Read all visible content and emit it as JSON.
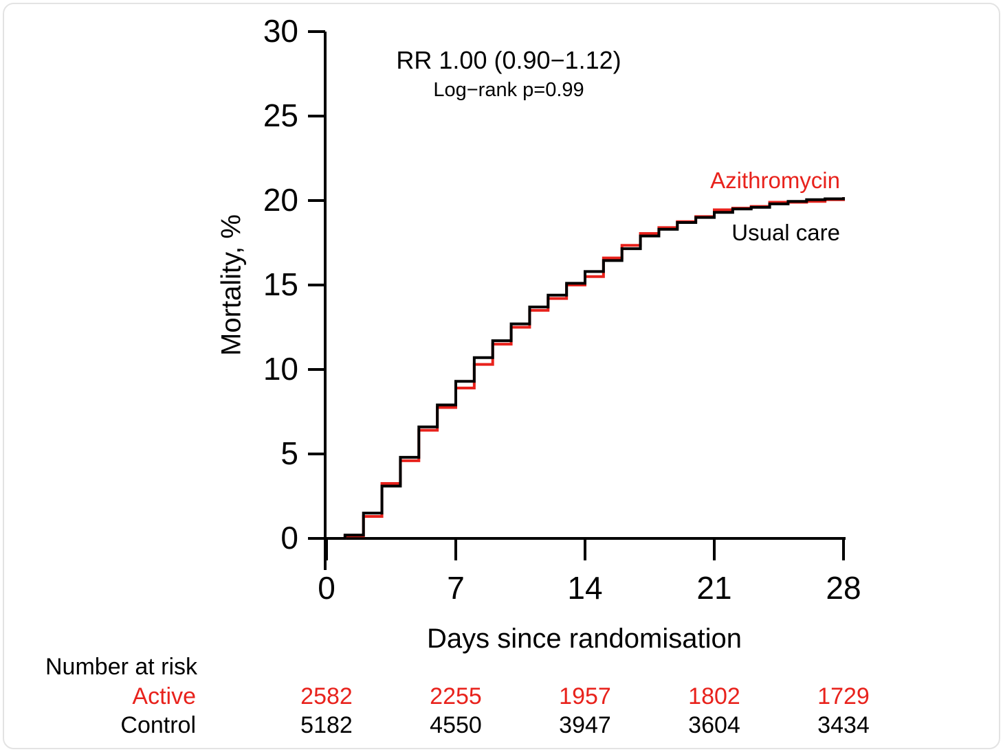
{
  "accent_red": "#e8221c",
  "black": "#000000",
  "annotations": {
    "rr": "RR 1.00 (0.90−1.12)",
    "logrank": "Log−rank p=0.99"
  },
  "series_labels": {
    "active": "Azithromycin",
    "control": "Usual care"
  },
  "chart_data": {
    "type": "line",
    "step": true,
    "title": "",
    "xlabel": "Days since randomisation",
    "ylabel": "Mortality, %",
    "xlim": [
      0,
      28
    ],
    "ylim": [
      0,
      30
    ],
    "grid": false,
    "xticks": [
      0,
      7,
      14,
      21,
      28
    ],
    "yticks": [
      0,
      5,
      10,
      15,
      20,
      25,
      30
    ],
    "x": [
      0,
      1,
      2,
      3,
      4,
      5,
      6,
      7,
      8,
      9,
      10,
      11,
      12,
      13,
      14,
      15,
      16,
      17,
      18,
      19,
      20,
      21,
      22,
      23,
      24,
      25,
      26,
      27,
      28
    ],
    "series": [
      {
        "name": "Azithromycin",
        "color": "#e8221c",
        "values": [
          0,
          0.15,
          1.3,
          3.25,
          4.6,
          6.4,
          7.75,
          8.9,
          10.3,
          11.5,
          12.5,
          13.5,
          14.2,
          15.0,
          15.5,
          16.6,
          17.35,
          18.05,
          18.4,
          18.75,
          19.05,
          19.45,
          19.55,
          19.65,
          19.9,
          19.9,
          19.95,
          20.05,
          20.2
        ]
      },
      {
        "name": "Usual care",
        "color": "#000000",
        "values": [
          0,
          0.2,
          1.5,
          3.1,
          4.8,
          6.6,
          7.9,
          9.3,
          10.7,
          11.7,
          12.7,
          13.7,
          14.4,
          15.1,
          15.8,
          16.45,
          17.15,
          17.9,
          18.3,
          18.7,
          19.0,
          19.3,
          19.5,
          19.6,
          19.8,
          19.95,
          20.05,
          20.1,
          20.2
        ]
      }
    ],
    "annotations": [
      "RR 1.00 (0.90−1.12)",
      "Log−rank p=0.99"
    ],
    "legend_position": "right-of-curve-end",
    "number_at_risk": {
      "title": "Number at risk",
      "days": [
        0,
        7,
        14,
        21,
        28
      ],
      "rows": [
        {
          "label": "Active",
          "color": "#e8221c",
          "values": [
            "2582",
            "2255",
            "1957",
            "1802",
            "1729"
          ]
        },
        {
          "label": "Control",
          "color": "#000000",
          "values": [
            "5182",
            "4550",
            "3947",
            "3604",
            "3434"
          ]
        }
      ]
    }
  }
}
